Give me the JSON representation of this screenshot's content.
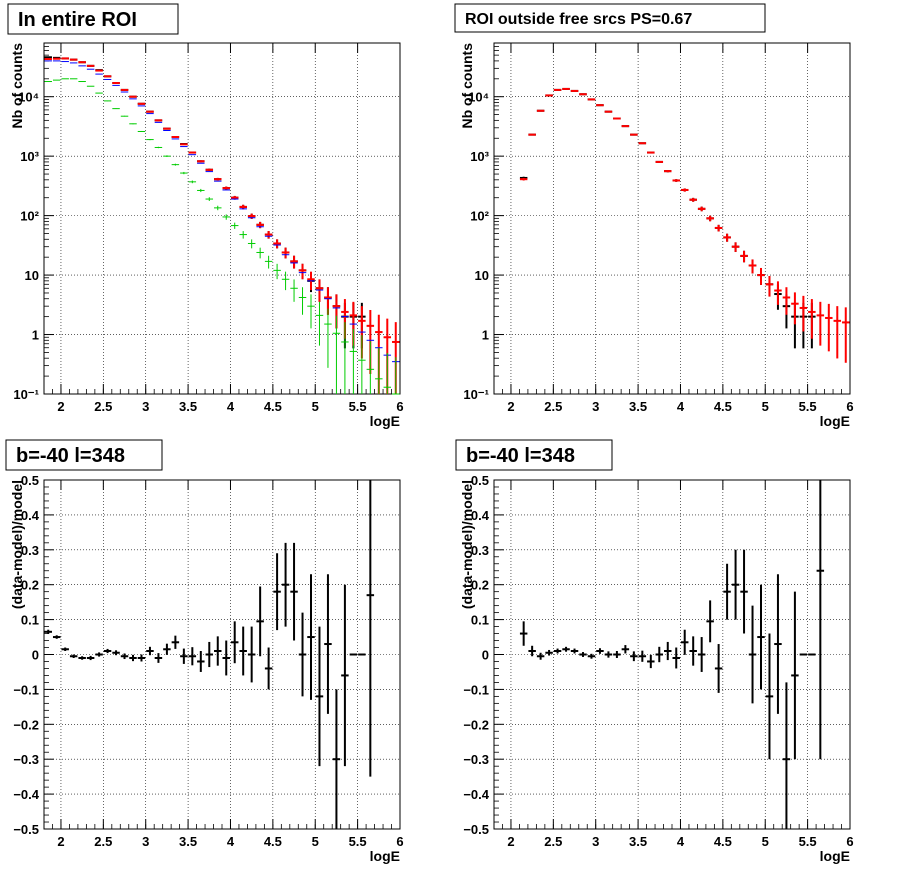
{
  "colors": {
    "data": "#000000",
    "model": "#ff0000",
    "blue": "#0000ff",
    "green": "#00cc00",
    "grid": "#000000"
  },
  "chart_data": [
    {
      "type": "scatter",
      "title": "In entire ROI",
      "xlabel": "logE",
      "ylabel": "Nb of counts",
      "xlim": [
        1.8,
        6.0
      ],
      "ylim": [
        0.1,
        80000
      ],
      "yscale": "log",
      "grid": true,
      "x_ticks": [
        "2",
        "2.5",
        "3",
        "3.5",
        "4",
        "4.5",
        "5",
        "5.5",
        "6"
      ],
      "y_ticks": [
        "10⁻¹",
        "1",
        "10",
        "10²",
        "10³",
        "10⁴"
      ],
      "bin_width": 0.1,
      "series": [
        {
          "color": "#000000",
          "errors": true,
          "x": [
            1.85,
            1.95,
            2.05,
            2.15,
            2.25,
            2.35,
            2.45,
            2.55,
            2.65,
            2.75,
            2.85,
            2.95,
            3.05,
            3.15,
            3.25,
            3.35,
            3.45,
            3.55,
            3.65,
            3.75,
            3.85,
            3.95,
            4.05,
            4.15,
            4.25,
            4.35,
            4.45,
            4.55,
            4.65,
            4.75,
            4.85,
            4.95,
            5.05,
            5.15,
            5.25,
            5.35,
            5.45,
            5.55
          ],
          "y": [
            46000,
            45000,
            44000,
            42000,
            38000,
            33000,
            28000,
            22000,
            17000,
            13000,
            10000,
            7600,
            5600,
            4000,
            2900,
            2100,
            1600,
            1150,
            820,
            590,
            410,
            290,
            200,
            140,
            98,
            70,
            48,
            34,
            24,
            17,
            12,
            8,
            6,
            4.2,
            3,
            2,
            2,
            2
          ]
        },
        {
          "color": "#ff0000",
          "errors": true,
          "x": [
            1.85,
            1.95,
            2.05,
            2.15,
            2.25,
            2.35,
            2.45,
            2.55,
            2.65,
            2.75,
            2.85,
            2.95,
            3.05,
            3.15,
            3.25,
            3.35,
            3.45,
            3.55,
            3.65,
            3.75,
            3.85,
            3.95,
            4.05,
            4.15,
            4.25,
            4.35,
            4.45,
            4.55,
            4.65,
            4.75,
            4.85,
            4.95,
            5.05,
            5.15,
            5.25,
            5.35,
            5.45,
            5.55,
            5.65,
            5.75,
            5.85,
            5.95
          ],
          "y": [
            43000,
            43500,
            44000,
            42000,
            38000,
            33000,
            27500,
            22000,
            17000,
            13000,
            10000,
            7600,
            5600,
            4000,
            2900,
            2100,
            1580,
            1150,
            820,
            590,
            410,
            290,
            200,
            140,
            98,
            70,
            48,
            34,
            24,
            17,
            12,
            8.5,
            6,
            4.2,
            3,
            2.4,
            2.1,
            1.7,
            1.4,
            1.1,
            0.9,
            0.75
          ]
        },
        {
          "color": "#0000ff",
          "errors": false,
          "x": [
            1.85,
            1.95,
            2.05,
            2.15,
            2.25,
            2.35,
            2.45,
            2.55,
            2.65,
            2.75,
            2.85,
            2.95,
            3.05,
            3.15,
            3.25,
            3.35,
            3.45,
            3.55,
            3.65,
            3.75,
            3.85,
            3.95,
            4.05,
            4.15,
            4.25,
            4.35,
            4.45,
            4.55,
            4.65,
            4.75,
            4.85,
            4.95,
            5.05,
            5.15,
            5.25,
            5.35,
            5.45,
            5.55,
            5.65,
            5.75,
            5.85,
            5.95
          ],
          "y": [
            40000,
            40000,
            39000,
            37000,
            33000,
            29000,
            24000,
            19500,
            15500,
            12000,
            9200,
            7000,
            5200,
            3700,
            2700,
            1950,
            1450,
            1060,
            760,
            550,
            380,
            270,
            190,
            130,
            92,
            65,
            45,
            32,
            22,
            16,
            11,
            8,
            5.6,
            4,
            2.8,
            2,
            1.5,
            1.1,
            0.8,
            0.6,
            0.45,
            0.35
          ]
        },
        {
          "color": "#00cc00",
          "errors": true,
          "x": [
            1.85,
            1.95,
            2.05,
            2.15,
            2.25,
            2.35,
            2.45,
            2.55,
            2.65,
            2.75,
            2.85,
            2.95,
            3.05,
            3.15,
            3.25,
            3.35,
            3.45,
            3.55,
            3.65,
            3.75,
            3.85,
            3.95,
            4.05,
            4.15,
            4.25,
            4.35,
            4.45,
            4.55,
            4.65,
            4.75,
            4.85,
            4.95,
            5.05,
            5.15,
            5.25,
            5.35,
            5.45,
            5.55,
            5.65,
            5.75,
            5.85,
            5.95
          ],
          "y": [
            18000,
            19000,
            20000,
            20000,
            18000,
            15000,
            11500,
            8500,
            6300,
            4700,
            3500,
            2600,
            1900,
            1400,
            1000,
            720,
            520,
            370,
            265,
            190,
            135,
            95,
            68,
            48,
            34,
            24,
            17,
            12,
            8.5,
            6,
            4.2,
            3,
            2.1,
            1.5,
            1.05,
            0.75,
            0.52,
            0.37,
            0.26,
            0.18,
            0.13,
            0.1
          ]
        }
      ]
    },
    {
      "type": "scatter",
      "title": "ROI outside free srcs PS=0.67",
      "xlabel": "logE",
      "ylabel": "Nb of counts",
      "xlim": [
        1.8,
        6.0
      ],
      "ylim": [
        0.1,
        80000
      ],
      "yscale": "log",
      "grid": true,
      "x_ticks": [
        "2",
        "2.5",
        "3",
        "3.5",
        "4",
        "4.5",
        "5",
        "5.5",
        "6"
      ],
      "y_ticks": [
        "10⁻¹",
        "1",
        "10",
        "10²",
        "10³",
        "10⁴"
      ],
      "bin_width": 0.1,
      "series": [
        {
          "color": "#000000",
          "errors": true,
          "x": [
            2.15,
            2.25,
            2.35,
            2.45,
            2.55,
            2.65,
            2.75,
            2.85,
            2.95,
            3.05,
            3.15,
            3.25,
            3.35,
            3.45,
            3.55,
            3.65,
            3.75,
            3.85,
            3.95,
            4.05,
            4.15,
            4.25,
            4.35,
            4.45,
            4.55,
            4.65,
            4.75,
            4.85,
            4.95,
            5.05,
            5.15,
            5.25,
            5.35,
            5.45,
            5.55
          ],
          "y": [
            430,
            2300,
            5800,
            10500,
            13000,
            13500,
            12500,
            11000,
            9000,
            7200,
            5600,
            4300,
            3200,
            2300,
            1650,
            1150,
            800,
            560,
            390,
            270,
            185,
            130,
            90,
            62,
            43,
            30,
            21,
            14.5,
            10,
            7,
            4.8,
            3,
            2,
            2,
            2
          ]
        },
        {
          "color": "#ff0000",
          "errors": true,
          "x": [
            2.15,
            2.25,
            2.35,
            2.45,
            2.55,
            2.65,
            2.75,
            2.85,
            2.95,
            3.05,
            3.15,
            3.25,
            3.35,
            3.45,
            3.55,
            3.65,
            3.75,
            3.85,
            3.95,
            4.05,
            4.15,
            4.25,
            4.35,
            4.45,
            4.55,
            4.65,
            4.75,
            4.85,
            4.95,
            5.05,
            5.15,
            5.25,
            5.35,
            5.45,
            5.55,
            5.65,
            5.75,
            5.85,
            5.95
          ],
          "y": [
            410,
            2300,
            5800,
            10500,
            13000,
            13500,
            12500,
            11000,
            9000,
            7200,
            5600,
            4300,
            3200,
            2300,
            1650,
            1150,
            800,
            560,
            390,
            270,
            185,
            130,
            90,
            62,
            43,
            30,
            21,
            14.5,
            10,
            7,
            5.5,
            4.2,
            3.3,
            2.8,
            2.4,
            2.1,
            1.9,
            1.7,
            1.6
          ]
        }
      ]
    },
    {
      "type": "scatter",
      "title": "b=-40 l=348",
      "xlabel": "logE",
      "ylabel": "(data-model)/model",
      "xlim": [
        1.8,
        6.0
      ],
      "ylim": [
        -0.5,
        0.5
      ],
      "yscale": "linear",
      "grid": true,
      "x_ticks": [
        "2",
        "2.5",
        "3",
        "3.5",
        "4",
        "4.5",
        "5",
        "5.5",
        "6"
      ],
      "y_ticks": [
        "−0.5",
        "−0.4",
        "−0.3",
        "−0.2",
        "−0.1",
        "0",
        "0.1",
        "0.2",
        "0.3",
        "0.4",
        "0.5"
      ],
      "bin_width": 0.1,
      "series": [
        {
          "color": "#000000",
          "errors": true,
          "x": [
            1.85,
            1.95,
            2.05,
            2.15,
            2.25,
            2.35,
            2.45,
            2.55,
            2.65,
            2.75,
            2.85,
            2.95,
            3.05,
            3.15,
            3.25,
            3.35,
            3.45,
            3.55,
            3.65,
            3.75,
            3.85,
            3.95,
            4.05,
            4.15,
            4.25,
            4.35,
            4.45,
            4.55,
            4.65,
            4.75,
            4.85,
            4.95,
            5.05,
            5.15,
            5.25,
            5.35,
            5.45,
            5.55,
            5.65
          ],
          "y": [
            0.065,
            0.05,
            0.015,
            -0.005,
            -0.01,
            -0.01,
            0.0,
            0.01,
            0.005,
            -0.005,
            -0.01,
            -0.01,
            0.01,
            -0.01,
            0.015,
            0.035,
            -0.005,
            -0.005,
            -0.02,
            0.0,
            0.01,
            -0.01,
            0.035,
            0.01,
            0.0,
            0.095,
            -0.04,
            0.18,
            0.2,
            0.18,
            0.0,
            0.05,
            -0.12,
            0.03,
            -0.3,
            -0.06,
            0.0,
            0.0,
            0.17
          ],
          "err": [
            0.006,
            0.005,
            0.005,
            0.005,
            0.005,
            0.006,
            0.006,
            0.006,
            0.007,
            0.008,
            0.009,
            0.01,
            0.012,
            0.014,
            0.016,
            0.019,
            0.022,
            0.026,
            0.03,
            0.036,
            0.042,
            0.05,
            0.06,
            0.07,
            0.08,
            0.1,
            0.06,
            0.11,
            0.12,
            0.14,
            0.12,
            0.18,
            0.2,
            0.2,
            0.2,
            0.26,
            0,
            0,
            0.52
          ]
        }
      ]
    },
    {
      "type": "scatter",
      "title": "b=-40 l=348",
      "xlabel": "logE",
      "ylabel": "(data-model)/model",
      "xlim": [
        1.8,
        6.0
      ],
      "ylim": [
        -0.5,
        0.5
      ],
      "yscale": "linear",
      "grid": true,
      "x_ticks": [
        "2",
        "2.5",
        "3",
        "3.5",
        "4",
        "4.5",
        "5",
        "5.5",
        "6"
      ],
      "y_ticks": [
        "−0.5",
        "−0.4",
        "−0.3",
        "−0.2",
        "−0.1",
        "0",
        "0.1",
        "0.2",
        "0.3",
        "0.4",
        "0.5"
      ],
      "bin_width": 0.1,
      "series": [
        {
          "color": "#000000",
          "errors": true,
          "x": [
            2.15,
            2.25,
            2.35,
            2.45,
            2.55,
            2.65,
            2.75,
            2.85,
            2.95,
            3.05,
            3.15,
            3.25,
            3.35,
            3.45,
            3.55,
            3.65,
            3.75,
            3.85,
            3.95,
            4.05,
            4.15,
            4.25,
            4.35,
            4.45,
            4.55,
            4.65,
            4.75,
            4.85,
            4.95,
            5.05,
            5.15,
            5.25,
            5.35,
            5.45,
            5.55,
            5.65
          ],
          "y": [
            0.06,
            0.01,
            -0.005,
            0.005,
            0.01,
            0.015,
            0.01,
            0.0,
            -0.005,
            0.01,
            0.0,
            0.0,
            0.015,
            -0.005,
            -0.005,
            -0.02,
            0.0,
            0.01,
            -0.01,
            0.035,
            0.01,
            0.0,
            0.095,
            -0.04,
            0.18,
            0.2,
            0.18,
            0.0,
            0.05,
            -0.12,
            0.03,
            -0.3,
            -0.06,
            0.0,
            0.0,
            0.24
          ],
          "err": [
            0.035,
            0.015,
            0.01,
            0.008,
            0.007,
            0.007,
            0.007,
            0.007,
            0.007,
            0.008,
            0.009,
            0.01,
            0.012,
            0.014,
            0.016,
            0.019,
            0.022,
            0.026,
            0.03,
            0.036,
            0.042,
            0.05,
            0.06,
            0.07,
            0.08,
            0.1,
            0.12,
            0.14,
            0.15,
            0.18,
            0.2,
            0.22,
            0.24,
            0,
            0,
            0.54
          ]
        }
      ]
    }
  ]
}
